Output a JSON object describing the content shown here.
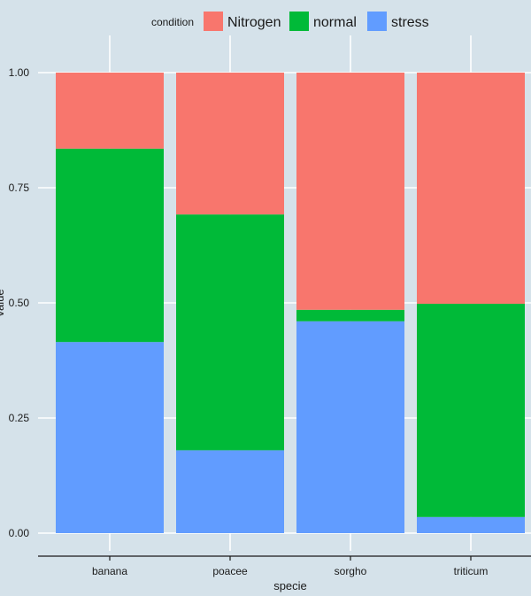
{
  "chart_data": {
    "type": "bar",
    "stacked": true,
    "title": "",
    "xlabel": "specie",
    "ylabel": "value",
    "ylim": [
      0,
      1
    ],
    "yticks": [
      "0.00",
      "0.25",
      "0.50",
      "0.75",
      "1.00"
    ],
    "categories": [
      "banana",
      "poacee",
      "sorgho",
      "triticum"
    ],
    "legend": {
      "title": "condition",
      "position": "top",
      "entries": [
        "Nitrogen",
        "normal",
        "stress"
      ]
    },
    "series": [
      {
        "name": "stress",
        "color": "#619cff",
        "values": [
          0.415,
          0.18,
          0.46,
          0.035
        ]
      },
      {
        "name": "normal",
        "color": "#00ba38",
        "values": [
          0.42,
          0.512,
          0.025,
          0.463
        ]
      },
      {
        "name": "Nitrogen",
        "color": "#f8766d",
        "values": [
          0.165,
          0.308,
          0.515,
          0.502
        ]
      }
    ],
    "grid": true
  }
}
